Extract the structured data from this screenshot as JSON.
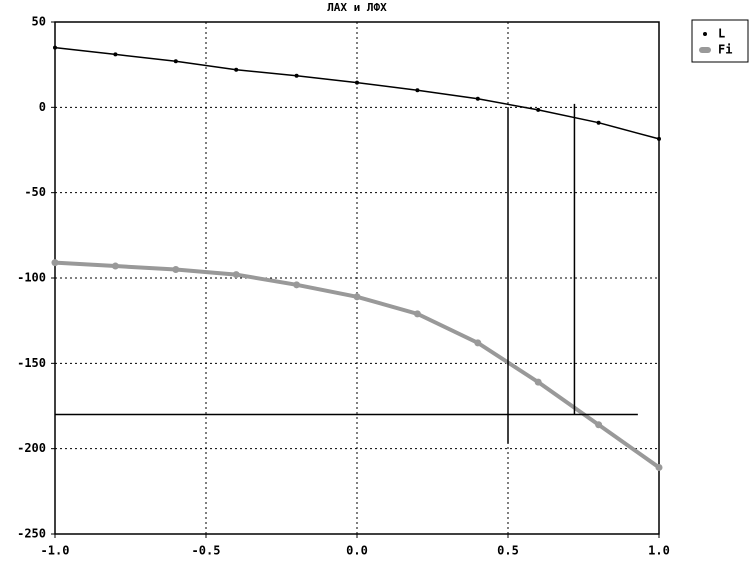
{
  "chart_data": {
    "type": "line",
    "title": "ЛАХ и ЛФХ",
    "x": [
      -1.0,
      -0.8,
      -0.6,
      -0.4,
      -0.2,
      0.0,
      0.2,
      0.4,
      0.6,
      0.8,
      1.0
    ],
    "series": [
      {
        "name": "L",
        "color": "#000000",
        "values": [
          35,
          31,
          27,
          22,
          18.5,
          14.5,
          10,
          5,
          -1.5,
          -9,
          -18.5
        ]
      },
      {
        "name": "Fi",
        "color": "#999999",
        "values": [
          -91,
          -93,
          -95,
          -98,
          -104,
          -111,
          -121,
          -138,
          -161,
          -186,
          -211
        ]
      }
    ],
    "reference_lines": [
      {
        "color": "#000000",
        "x": [
          0.5,
          0.5
        ],
        "y": [
          -197,
          0
        ]
      },
      {
        "color": "#000000",
        "x": [
          0.72,
          0.72
        ],
        "y": [
          2,
          -180
        ]
      },
      {
        "color": "#000000",
        "x": [
          -1.0,
          0.93
        ],
        "y": [
          -180,
          -180
        ]
      }
    ],
    "xlim": [
      -1.0,
      1.0
    ],
    "xticks": [
      {
        "value": -1.0,
        "label": "-1.0"
      },
      -0.5,
      {
        "value": 0.0,
        "label": "0.0"
      },
      0.5,
      {
        "value": 1.0,
        "label": "1.0"
      }
    ],
    "ylim": [
      -250,
      50
    ],
    "yticks": [
      50,
      0,
      -50,
      -100,
      -150,
      -200,
      -250
    ],
    "grid": true,
    "legend": "outside-right"
  }
}
